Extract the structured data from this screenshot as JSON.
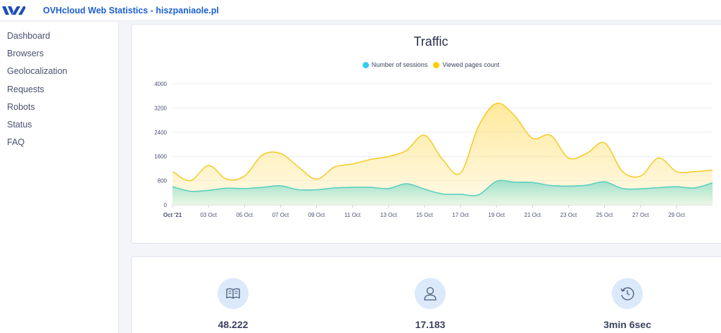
{
  "app": {
    "title": "OVHcloud Web Statistics - hiszpaniaole.pl"
  },
  "sidebar": {
    "items": [
      {
        "label": "Dashboard"
      },
      {
        "label": "Browsers"
      },
      {
        "label": "Geolocalization"
      },
      {
        "label": "Requests"
      },
      {
        "label": "Robots"
      },
      {
        "label": "Status"
      },
      {
        "label": "FAQ"
      }
    ]
  },
  "traffic": {
    "title": "Traffic",
    "legend": [
      {
        "label": "Number of sessions",
        "color": "#33ccee"
      },
      {
        "label": "Viewed pages count",
        "color": "#ffcc00"
      }
    ]
  },
  "chart_data": {
    "type": "area",
    "title": "Traffic",
    "x": [
      "Oct '21",
      "02 Oct",
      "03 Oct",
      "04 Oct",
      "05 Oct",
      "06 Oct",
      "07 Oct",
      "08 Oct",
      "09 Oct",
      "10 Oct",
      "11 Oct",
      "12 Oct",
      "13 Oct",
      "14 Oct",
      "15 Oct",
      "16 Oct",
      "17 Oct",
      "18 Oct",
      "19 Oct",
      "20 Oct",
      "21 Oct",
      "22 Oct",
      "23 Oct",
      "24 Oct",
      "25 Oct",
      "26 Oct",
      "27 Oct",
      "28 Oct",
      "29 Oct",
      "30 Oct",
      "31 Oct"
    ],
    "x_tick_labels": [
      "Oct '21",
      "03 Oct",
      "05 Oct",
      "07 Oct",
      "09 Oct",
      "11 Oct",
      "13 Oct",
      "15 Oct",
      "17 Oct",
      "19 Oct",
      "21 Oct",
      "23 Oct",
      "25 Oct",
      "27 Oct",
      "29 Oct"
    ],
    "x_tick_indices": [
      0,
      2,
      4,
      6,
      8,
      10,
      12,
      14,
      16,
      18,
      20,
      22,
      24,
      26,
      28
    ],
    "y_ticks": [
      0,
      800,
      1600,
      2400,
      3200,
      4000
    ],
    "ylim": [
      0,
      4000
    ],
    "grid": true,
    "legend_position": "top-center",
    "series": [
      {
        "name": "Viewed pages count",
        "color": "#f5cd2e",
        "values": [
          1100,
          800,
          1300,
          850,
          950,
          1650,
          1700,
          1250,
          850,
          1250,
          1350,
          1500,
          1600,
          1800,
          2300,
          1500,
          1050,
          2600,
          3350,
          2950,
          2200,
          2300,
          1550,
          1700,
          2050,
          1100,
          950,
          1550,
          1100,
          1100,
          1150
        ]
      },
      {
        "name": "Number of sessions",
        "color": "#5ccfc0",
        "values": [
          600,
          450,
          480,
          550,
          540,
          580,
          630,
          500,
          500,
          560,
          580,
          580,
          540,
          700,
          520,
          360,
          350,
          330,
          780,
          750,
          740,
          640,
          620,
          650,
          760,
          540,
          530,
          570,
          600,
          560,
          730
        ]
      }
    ]
  },
  "stats": [
    {
      "value": "48.222",
      "icon": "book-icon"
    },
    {
      "value": "17.183",
      "icon": "user-icon"
    },
    {
      "value": "3min 6sec",
      "icon": "history-clock-icon"
    }
  ]
}
